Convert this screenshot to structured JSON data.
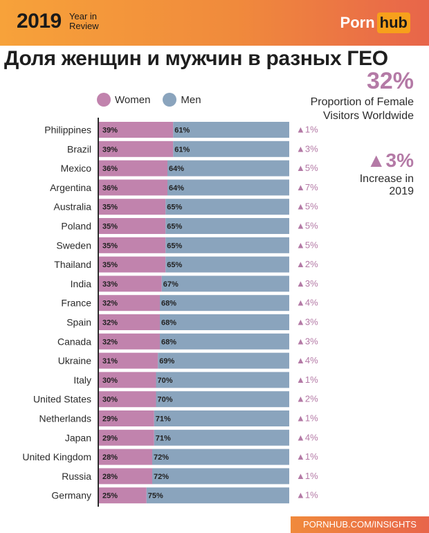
{
  "header": {
    "year": "2019",
    "year_sub": "Year in Review",
    "logo_part1": "Porn",
    "logo_part2": "hub"
  },
  "title": "Доля женщин и мужчин в разных ГЕО",
  "stats": {
    "proportion_value": "32%",
    "proportion_label": "Proportion of Female Visitors Worldwide",
    "increase_value": "▲3%",
    "increase_label": "Increase in 2019"
  },
  "footer": "PORNHUB.COM/INSIGHTS",
  "colors": {
    "women": "#c183ad",
    "men": "#8aa4bd",
    "accent": "#b47aa6"
  },
  "chart_data": {
    "type": "bar",
    "stacked": true,
    "orientation": "horizontal",
    "categories": [
      "Philippines",
      "Brazil",
      "Mexico",
      "Argentina",
      "Australia",
      "Poland",
      "Sweden",
      "Thailand",
      "India",
      "France",
      "Spain",
      "Canada",
      "Ukraine",
      "Italy",
      "United States",
      "Netherlands",
      "Japan",
      "United Kingdom",
      "Russia",
      "Germany"
    ],
    "series": [
      {
        "name": "Women",
        "values": [
          39,
          39,
          36,
          36,
          35,
          35,
          35,
          35,
          33,
          32,
          32,
          32,
          31,
          30,
          30,
          29,
          29,
          28,
          28,
          25
        ]
      },
      {
        "name": "Men",
        "values": [
          61,
          61,
          64,
          64,
          65,
          65,
          65,
          65,
          67,
          68,
          68,
          68,
          69,
          70,
          70,
          71,
          71,
          72,
          72,
          75
        ]
      }
    ],
    "change_labels": [
      "▲1%",
      "▲3%",
      "▲5%",
      "▲7%",
      "▲5%",
      "▲5%",
      "▲5%",
      "▲2%",
      "▲3%",
      "▲4%",
      "▲3%",
      "▲3%",
      "▲4%",
      "▲1%",
      "▲2%",
      "▲1%",
      "▲4%",
      "▲1%",
      "▲1%",
      "▲1%"
    ],
    "xlim": [
      0,
      100
    ],
    "legend": "top"
  }
}
